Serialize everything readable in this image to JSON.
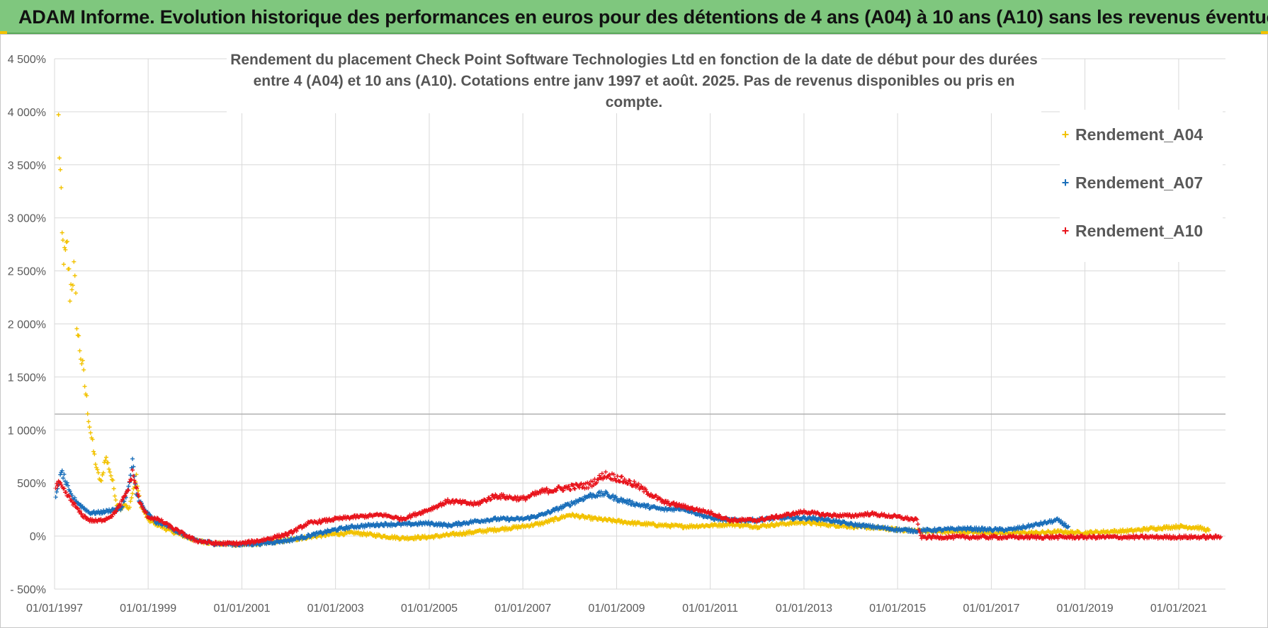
{
  "header": {
    "title": "ADAM Informe. Evolution historique des performances en euros pour des détentions de 4 ans (A04) à 10 ans (A10) sans les revenus éventuels"
  },
  "chart_data": {
    "type": "scatter",
    "title_line1": "Rendement du placement Check Point Software Technologies Ltd en fonction de la date de début pour des durées",
    "title_line2": "entre 4 (A04) et 10 ans (A10).  Cotations entre janv 1997 et août. 2025. Pas de revenus disponibles ou pris en compte.",
    "x_ticks": [
      "01/01/1997",
      "01/01/1999",
      "01/01/2001",
      "01/01/2003",
      "01/01/2005",
      "01/01/2007",
      "01/01/2009",
      "01/01/2011",
      "01/01/2013",
      "01/01/2015",
      "01/01/2017",
      "01/01/2019",
      "01/01/2021"
    ],
    "y_ticks": [
      "- 500%",
      "0%",
      "500%",
      "1 000%",
      "1 500%",
      "2 000%",
      "2 500%",
      "3 000%",
      "3 500%",
      "4 000%",
      "4 500%"
    ],
    "xlim": [
      "1997-01-01",
      "2022-01-01"
    ],
    "ylim": [
      -500,
      4500
    ],
    "grid": true,
    "legend_position": "right",
    "reference_line_y": 1150,
    "series": [
      {
        "name": "Rendement_A04",
        "color": "#f2c200",
        "points": [
          [
            "1997-02-01",
            3900
          ],
          [
            "1997-02-15",
            3400
          ],
          [
            "1997-03-01",
            2800
          ],
          [
            "1997-03-20",
            2600
          ],
          [
            "1997-04-10",
            2700
          ],
          [
            "1997-05-01",
            2300
          ],
          [
            "1997-06-01",
            2500
          ],
          [
            "1997-07-01",
            1900
          ],
          [
            "1997-08-01",
            1650
          ],
          [
            "1997-09-01",
            1350
          ],
          [
            "1997-10-01",
            1050
          ],
          [
            "1997-11-01",
            800
          ],
          [
            "1997-12-01",
            600
          ],
          [
            "1998-01-01",
            500
          ],
          [
            "1998-02-01",
            750
          ],
          [
            "1998-03-01",
            650
          ],
          [
            "1998-04-01",
            500
          ],
          [
            "1998-05-01",
            300
          ],
          [
            "1998-06-01",
            250
          ],
          [
            "1998-07-01",
            300
          ],
          [
            "1998-08-01",
            250
          ],
          [
            "1998-09-01",
            400
          ],
          [
            "1998-10-01",
            550
          ],
          [
            "1998-11-01",
            300
          ],
          [
            "1999-01-01",
            150
          ],
          [
            "1999-06-01",
            60
          ],
          [
            "2000-01-01",
            -40
          ],
          [
            "2000-06-01",
            -70
          ],
          [
            "2001-01-01",
            -80
          ],
          [
            "2001-06-01",
            -70
          ],
          [
            "2002-01-01",
            -40
          ],
          [
            "2002-06-01",
            -10
          ],
          [
            "2003-01-01",
            20
          ],
          [
            "2003-06-01",
            30
          ],
          [
            "2004-01-01",
            0
          ],
          [
            "2004-06-01",
            -20
          ],
          [
            "2005-01-01",
            -10
          ],
          [
            "2005-06-01",
            10
          ],
          [
            "2006-01-01",
            40
          ],
          [
            "2006-06-01",
            60
          ],
          [
            "2007-01-01",
            90
          ],
          [
            "2007-06-01",
            120
          ],
          [
            "2008-01-01",
            200
          ],
          [
            "2008-06-01",
            170
          ],
          [
            "2009-01-01",
            140
          ],
          [
            "2009-06-01",
            120
          ],
          [
            "2010-01-01",
            100
          ],
          [
            "2010-06-01",
            90
          ],
          [
            "2011-01-01",
            100
          ],
          [
            "2011-06-01",
            110
          ],
          [
            "2012-01-01",
            90
          ],
          [
            "2012-06-01",
            110
          ],
          [
            "2013-01-01",
            130
          ],
          [
            "2013-06-01",
            110
          ],
          [
            "2014-01-01",
            90
          ],
          [
            "2014-06-01",
            80
          ],
          [
            "2015-01-01",
            60
          ],
          [
            "2015-06-01",
            50
          ],
          [
            "2016-01-01",
            40
          ],
          [
            "2016-06-01",
            40
          ],
          [
            "2017-01-01",
            30
          ],
          [
            "2017-06-01",
            30
          ],
          [
            "2018-01-01",
            30
          ],
          [
            "2018-06-01",
            40
          ],
          [
            "2019-01-01",
            30
          ],
          [
            "2019-06-01",
            40
          ],
          [
            "2020-01-01",
            50
          ],
          [
            "2020-06-01",
            70
          ],
          [
            "2021-01-01",
            90
          ],
          [
            "2021-06-01",
            80
          ],
          [
            "2021-09-01",
            50
          ]
        ]
      },
      {
        "name": "Rendement_A07",
        "color": "#1a6fba",
        "points": [
          [
            "1997-01-10",
            350
          ],
          [
            "1997-02-01",
            500
          ],
          [
            "1997-03-01",
            600
          ],
          [
            "1997-04-01",
            500
          ],
          [
            "1997-05-01",
            400
          ],
          [
            "1997-06-01",
            350
          ],
          [
            "1997-08-01",
            280
          ],
          [
            "1997-10-01",
            220
          ],
          [
            "1997-12-01",
            220
          ],
          [
            "1998-02-01",
            230
          ],
          [
            "1998-04-01",
            250
          ],
          [
            "1998-06-01",
            250
          ],
          [
            "1998-08-01",
            450
          ],
          [
            "1998-09-01",
            700
          ],
          [
            "1998-10-01",
            400
          ],
          [
            "1998-12-01",
            250
          ],
          [
            "1999-03-01",
            130
          ],
          [
            "1999-06-01",
            100
          ],
          [
            "1999-09-01",
            30
          ],
          [
            "2000-01-01",
            -40
          ],
          [
            "2000-06-01",
            -70
          ],
          [
            "2001-01-01",
            -80
          ],
          [
            "2001-06-01",
            -70
          ],
          [
            "2002-01-01",
            -40
          ],
          [
            "2002-06-01",
            0
          ],
          [
            "2003-01-01",
            60
          ],
          [
            "2003-06-01",
            90
          ],
          [
            "2004-01-01",
            110
          ],
          [
            "2004-06-01",
            110
          ],
          [
            "2005-01-01",
            120
          ],
          [
            "2005-06-01",
            100
          ],
          [
            "2006-01-01",
            140
          ],
          [
            "2006-06-01",
            160
          ],
          [
            "2007-01-01",
            160
          ],
          [
            "2007-06-01",
            200
          ],
          [
            "2008-01-01",
            300
          ],
          [
            "2008-06-01",
            380
          ],
          [
            "2008-10-01",
            400
          ],
          [
            "2009-01-01",
            350
          ],
          [
            "2009-06-01",
            300
          ],
          [
            "2010-01-01",
            250
          ],
          [
            "2010-06-01",
            260
          ],
          [
            "2011-01-01",
            170
          ],
          [
            "2011-06-01",
            150
          ],
          [
            "2012-01-01",
            150
          ],
          [
            "2012-06-01",
            170
          ],
          [
            "2013-01-01",
            170
          ],
          [
            "2013-06-01",
            160
          ],
          [
            "2014-01-01",
            110
          ],
          [
            "2014-06-01",
            90
          ],
          [
            "2015-01-01",
            60
          ],
          [
            "2015-06-01",
            50
          ],
          [
            "2016-01-01",
            60
          ],
          [
            "2016-06-01",
            70
          ],
          [
            "2017-01-01",
            60
          ],
          [
            "2017-06-01",
            60
          ],
          [
            "2018-01-01",
            110
          ],
          [
            "2018-06-01",
            150
          ],
          [
            "2018-09-01",
            80
          ]
        ]
      },
      {
        "name": "Rendement_A10",
        "color": "#e8141c",
        "points": [
          [
            "1997-01-10",
            450
          ],
          [
            "1997-02-01",
            500
          ],
          [
            "1997-04-01",
            400
          ],
          [
            "1997-06-01",
            300
          ],
          [
            "1997-08-01",
            200
          ],
          [
            "1997-10-01",
            150
          ],
          [
            "1997-12-01",
            140
          ],
          [
            "1998-02-01",
            160
          ],
          [
            "1998-04-01",
            200
          ],
          [
            "1998-06-01",
            300
          ],
          [
            "1998-08-01",
            450
          ],
          [
            "1998-09-01",
            600
          ],
          [
            "1998-11-01",
            300
          ],
          [
            "1999-01-01",
            180
          ],
          [
            "1999-04-01",
            150
          ],
          [
            "1999-08-01",
            60
          ],
          [
            "2000-01-01",
            -40
          ],
          [
            "2000-06-01",
            -70
          ],
          [
            "2001-01-01",
            -70
          ],
          [
            "2001-06-01",
            -40
          ],
          [
            "2002-01-01",
            20
          ],
          [
            "2002-06-01",
            120
          ],
          [
            "2003-01-01",
            160
          ],
          [
            "2003-06-01",
            180
          ],
          [
            "2004-01-01",
            200
          ],
          [
            "2004-06-01",
            160
          ],
          [
            "2005-01-01",
            250
          ],
          [
            "2005-06-01",
            330
          ],
          [
            "2006-01-01",
            300
          ],
          [
            "2006-06-01",
            380
          ],
          [
            "2007-01-01",
            350
          ],
          [
            "2007-06-01",
            420
          ],
          [
            "2008-01-01",
            460
          ],
          [
            "2008-06-01",
            480
          ],
          [
            "2008-10-01",
            580
          ],
          [
            "2009-01-01",
            550
          ],
          [
            "2009-06-01",
            480
          ],
          [
            "2010-01-01",
            320
          ],
          [
            "2010-06-01",
            280
          ],
          [
            "2011-01-01",
            220
          ],
          [
            "2011-06-01",
            150
          ],
          [
            "2012-01-01",
            150
          ],
          [
            "2012-06-01",
            180
          ],
          [
            "2013-01-01",
            230
          ],
          [
            "2013-06-01",
            200
          ],
          [
            "2014-01-01",
            190
          ],
          [
            "2014-06-01",
            210
          ],
          [
            "2015-01-01",
            180
          ],
          [
            "2015-06-01",
            150
          ],
          [
            "2015-07-01",
            -10
          ],
          [
            "2016-01-01",
            -10
          ],
          [
            "2017-01-01",
            -10
          ],
          [
            "2018-01-01",
            -10
          ],
          [
            "2019-01-01",
            -10
          ],
          [
            "2020-01-01",
            -10
          ],
          [
            "2021-01-01",
            -10
          ],
          [
            "2021-12-01",
            -10
          ]
        ]
      }
    ]
  }
}
